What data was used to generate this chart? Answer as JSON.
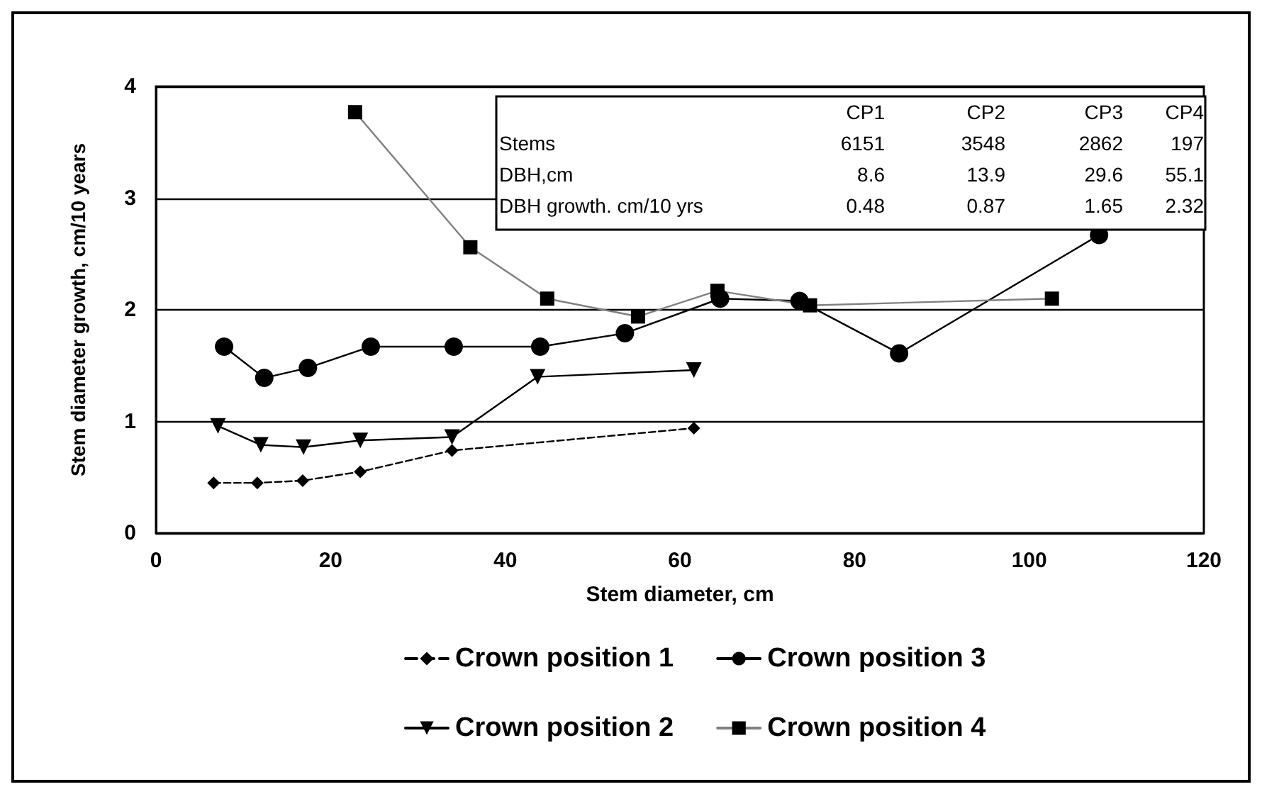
{
  "chart_data": {
    "type": "line",
    "xlabel": "Stem diameter, cm",
    "ylabel": "Stem diameter growth, cm/10 years",
    "xlim": [
      0,
      120
    ],
    "xticks": [
      0,
      20,
      40,
      60,
      80,
      100,
      120
    ],
    "ylim": [
      0,
      4
    ],
    "yticks": [
      0,
      1,
      2,
      3,
      4
    ],
    "grid": "y",
    "legend": "bottom",
    "series": [
      {
        "name": "Crown position 1",
        "color": "#000000",
        "marker": "diamond",
        "line_style": "dashed",
        "x": [
          6.6,
          11.6,
          16.8,
          23.4,
          33.9,
          61.6
        ],
        "values": [
          0.45,
          0.45,
          0.47,
          0.55,
          0.74,
          0.94
        ]
      },
      {
        "name": "Crown position 2",
        "color": "#000000",
        "marker": "triangle",
        "line_style": "solid",
        "x": [
          7.1,
          12.0,
          16.9,
          23.4,
          33.9,
          43.7,
          61.6
        ],
        "values": [
          0.96,
          0.79,
          0.77,
          0.83,
          0.86,
          1.4,
          1.46
        ]
      },
      {
        "name": "Crown position 3",
        "color": "#000000",
        "marker": "circle",
        "line_style": "solid",
        "x": [
          7.8,
          12.4,
          17.4,
          24.6,
          34.1,
          44.0,
          53.7,
          64.6,
          73.7,
          85.1,
          108.0
        ],
        "values": [
          1.67,
          1.39,
          1.48,
          1.67,
          1.67,
          1.67,
          1.79,
          2.1,
          2.08,
          1.61,
          2.67
        ]
      },
      {
        "name": "Crown position 4",
        "color": "#808080",
        "marker": "square",
        "line_style": "solid",
        "x": [
          22.8,
          36.0,
          44.8,
          55.2,
          64.3,
          74.9,
          102.6
        ],
        "values": [
          3.77,
          2.56,
          2.1,
          1.94,
          2.17,
          2.04,
          2.1
        ]
      }
    ],
    "annotations": [
      "CP1",
      "CP2",
      "CP3",
      "CP4",
      "Stems",
      "6151",
      "3548",
      "2862",
      "197",
      "DBH,cm",
      "8.6",
      "13.9",
      "29.6",
      "55.1",
      "DBH growth. cm/10 yrs",
      "0.48",
      "0.87",
      "1.65",
      "2.32"
    ]
  }
}
